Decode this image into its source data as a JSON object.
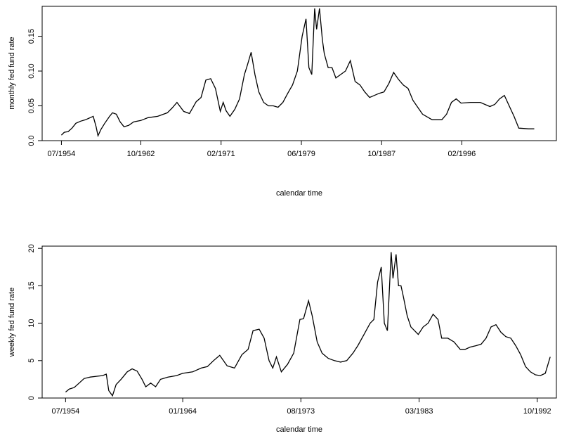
{
  "chart_data": [
    {
      "type": "line",
      "xlabel": "calendar time",
      "ylabel": "monthly fed fund rate",
      "xlim": [
        1952.5,
        2005.9
      ],
      "ylim": [
        0.0,
        0.193
      ],
      "x_ticks": [
        {
          "value": 1954.5,
          "label": "07/1954"
        },
        {
          "value": 1962.75,
          "label": "10/1962"
        },
        {
          "value": 1971.08,
          "label": "02/1971"
        },
        {
          "value": 1979.42,
          "label": "06/1979"
        },
        {
          "value": 1987.75,
          "label": "10/1987"
        },
        {
          "value": 1996.08,
          "label": "02/1996"
        }
      ],
      "y_ticks": [
        {
          "value": 0.0,
          "label": "0.0"
        },
        {
          "value": 0.05,
          "label": "0.05"
        },
        {
          "value": 0.1,
          "label": "0.10"
        },
        {
          "value": 0.15,
          "label": "0.15"
        }
      ],
      "series": [
        {
          "x": [
            1954.5,
            1954.8,
            1955.2,
            1955.6,
            1956.0,
            1956.5,
            1957.0,
            1957.5,
            1957.8,
            1958.1,
            1958.3,
            1958.6,
            1959.0,
            1959.5,
            1959.8,
            1960.2,
            1960.6,
            1961.0,
            1961.5,
            1962.0,
            1962.75,
            1963.5,
            1964.5,
            1965.5,
            1966.0,
            1966.5,
            1967.2,
            1967.8,
            1968.5,
            1969.0,
            1969.5,
            1970.0,
            1970.5,
            1971.0,
            1971.3,
            1971.6,
            1972.0,
            1972.5,
            1973.0,
            1973.5,
            1973.8,
            1974.2,
            1974.6,
            1975.0,
            1975.5,
            1976.0,
            1976.5,
            1977.0,
            1977.5,
            1978.0,
            1978.5,
            1979.0,
            1979.5,
            1979.9,
            1980.2,
            1980.5,
            1980.8,
            1981.0,
            1981.3,
            1981.6,
            1981.8,
            1982.2,
            1982.6,
            1983.0,
            1983.5,
            1984.0,
            1984.5,
            1985.0,
            1985.5,
            1986.0,
            1986.5,
            1987.0,
            1987.5,
            1988.0,
            1988.5,
            1989.0,
            1989.5,
            1990.0,
            1990.5,
            1991.0,
            1991.5,
            1992.0,
            1993.0,
            1994.0,
            1994.5,
            1995.0,
            1995.5,
            1996.0,
            1997.0,
            1998.0,
            1999.0,
            1999.5,
            2000.0,
            2000.5,
            2001.0,
            2001.5,
            2002.0,
            2003.0,
            2003.6
          ],
          "y": [
            0.008,
            0.012,
            0.013,
            0.018,
            0.025,
            0.028,
            0.03,
            0.033,
            0.035,
            0.02,
            0.007,
            0.016,
            0.025,
            0.035,
            0.04,
            0.038,
            0.027,
            0.02,
            0.022,
            0.027,
            0.029,
            0.033,
            0.035,
            0.04,
            0.047,
            0.055,
            0.042,
            0.039,
            0.056,
            0.062,
            0.087,
            0.089,
            0.075,
            0.042,
            0.055,
            0.043,
            0.035,
            0.045,
            0.06,
            0.095,
            0.108,
            0.127,
            0.095,
            0.07,
            0.055,
            0.05,
            0.05,
            0.048,
            0.055,
            0.068,
            0.08,
            0.1,
            0.15,
            0.175,
            0.105,
            0.095,
            0.19,
            0.16,
            0.19,
            0.145,
            0.125,
            0.105,
            0.105,
            0.09,
            0.095,
            0.1,
            0.115,
            0.085,
            0.08,
            0.07,
            0.062,
            0.065,
            0.068,
            0.07,
            0.082,
            0.098,
            0.088,
            0.08,
            0.075,
            0.058,
            0.048,
            0.038,
            0.03,
            0.03,
            0.038,
            0.055,
            0.06,
            0.054,
            0.055,
            0.055,
            0.049,
            0.052,
            0.06,
            0.065,
            0.05,
            0.035,
            0.018,
            0.017,
            0.017
          ]
        }
      ]
    },
    {
      "type": "line",
      "xlabel": "calendar time",
      "ylabel": "weekly fed fund rate",
      "xlim": [
        1952.6,
        1994.3
      ],
      "ylim": [
        0.0,
        20.3
      ],
      "x_ticks": [
        {
          "value": 1954.5,
          "label": "07/1954"
        },
        {
          "value": 1964.0,
          "label": "01/1964"
        },
        {
          "value": 1973.58,
          "label": "08/1973"
        },
        {
          "value": 1983.17,
          "label": "03/1983"
        },
        {
          "value": 1992.75,
          "label": "10/1992"
        }
      ],
      "y_ticks": [
        {
          "value": 0,
          "label": "0"
        },
        {
          "value": 5,
          "label": "5"
        },
        {
          "value": 10,
          "label": "10"
        },
        {
          "value": 15,
          "label": "15"
        },
        {
          "value": 20,
          "label": "20"
        }
      ],
      "series": [
        {
          "x": [
            1954.5,
            1954.8,
            1955.2,
            1955.6,
            1956.0,
            1956.5,
            1957.0,
            1957.5,
            1957.8,
            1958.0,
            1958.3,
            1958.6,
            1959.0,
            1959.5,
            1959.9,
            1960.3,
            1960.7,
            1961.0,
            1961.4,
            1961.8,
            1962.2,
            1962.8,
            1963.5,
            1964.0,
            1964.8,
            1965.5,
            1966.0,
            1966.5,
            1967.0,
            1967.6,
            1968.2,
            1968.8,
            1969.3,
            1969.7,
            1970.2,
            1970.6,
            1971.0,
            1971.3,
            1971.6,
            1972.0,
            1972.5,
            1973.0,
            1973.5,
            1973.8,
            1974.2,
            1974.5,
            1974.9,
            1975.3,
            1975.8,
            1976.3,
            1976.8,
            1977.3,
            1977.8,
            1978.2,
            1978.7,
            1979.2,
            1979.5,
            1979.8,
            1980.1,
            1980.35,
            1980.6,
            1980.9,
            1981.05,
            1981.3,
            1981.5,
            1981.7,
            1981.9,
            1982.2,
            1982.5,
            1982.8,
            1983.1,
            1983.5,
            1983.9,
            1984.3,
            1984.7,
            1985.0,
            1985.5,
            1986.0,
            1986.5,
            1986.9,
            1987.3,
            1987.8,
            1988.2,
            1988.6,
            1989.0,
            1989.4,
            1989.8,
            1990.2,
            1990.6,
            1991.0,
            1991.4,
            1991.8,
            1992.2,
            1992.6,
            1993.0,
            1993.4,
            1993.8
          ],
          "y": [
            0.8,
            1.2,
            1.4,
            2.0,
            2.6,
            2.8,
            2.9,
            3.0,
            3.2,
            1.0,
            0.3,
            1.8,
            2.5,
            3.5,
            3.9,
            3.6,
            2.5,
            1.5,
            2.0,
            1.5,
            2.5,
            2.8,
            3.0,
            3.3,
            3.5,
            4.0,
            4.2,
            5.0,
            5.7,
            4.3,
            4.0,
            5.8,
            6.5,
            9.0,
            9.2,
            8.0,
            5.0,
            4.0,
            5.5,
            3.5,
            4.5,
            6.0,
            10.5,
            10.6,
            13.0,
            11.0,
            7.5,
            6.0,
            5.3,
            5.0,
            4.8,
            5.0,
            6.0,
            7.0,
            8.5,
            10.0,
            10.5,
            15.5,
            17.5,
            10.0,
            9.0,
            19.5,
            16.0,
            19.2,
            15.0,
            15.0,
            13.5,
            11.0,
            9.5,
            9.0,
            8.5,
            9.5,
            10.0,
            11.2,
            10.5,
            8.0,
            8.0,
            7.5,
            6.5,
            6.5,
            6.8,
            7.0,
            7.2,
            8.0,
            9.5,
            9.8,
            8.8,
            8.2,
            8.0,
            7.0,
            5.8,
            4.2,
            3.5,
            3.1,
            3.0,
            3.3,
            5.5
          ]
        }
      ]
    }
  ]
}
